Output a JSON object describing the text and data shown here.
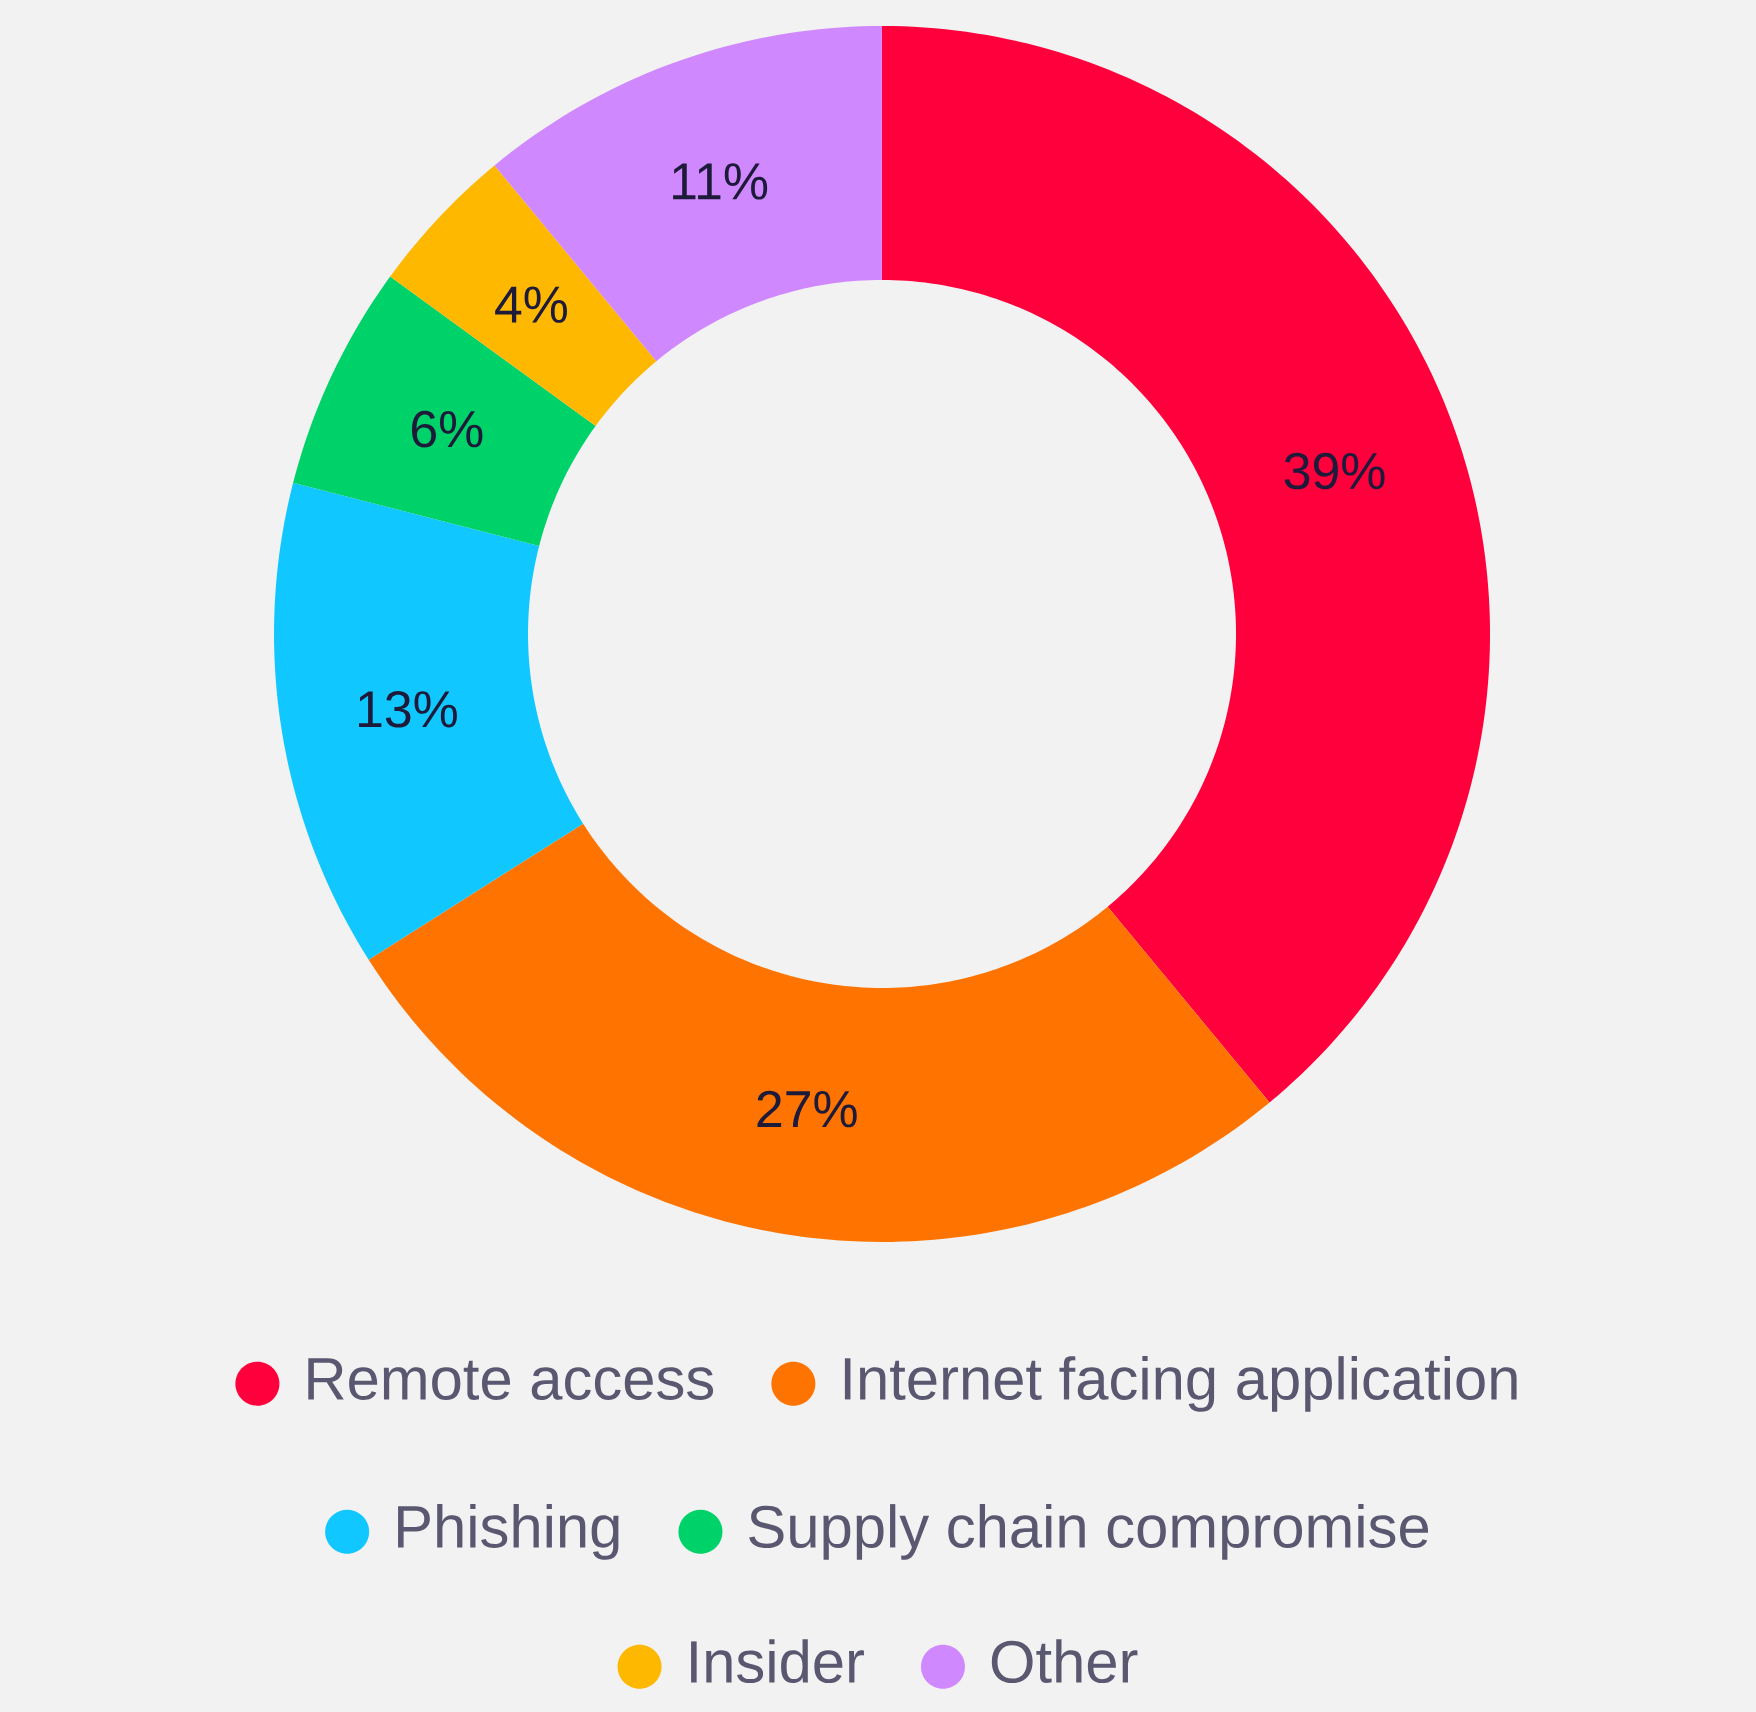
{
  "chart_data": {
    "type": "donut",
    "categories": [
      "Remote access",
      "Internet facing application",
      "Phishing",
      "Supply chain compromise",
      "Insider",
      "Other"
    ],
    "values": [
      39,
      27,
      13,
      6,
      4,
      11
    ],
    "colors": [
      "#ff003c",
      "#ff7400",
      "#10c8ff",
      "#00d26a",
      "#ffb800",
      "#d088ff"
    ],
    "value_labels": [
      "39%",
      "27%",
      "13%",
      "6%",
      "4%",
      "11%"
    ],
    "legend": "bottom"
  }
}
